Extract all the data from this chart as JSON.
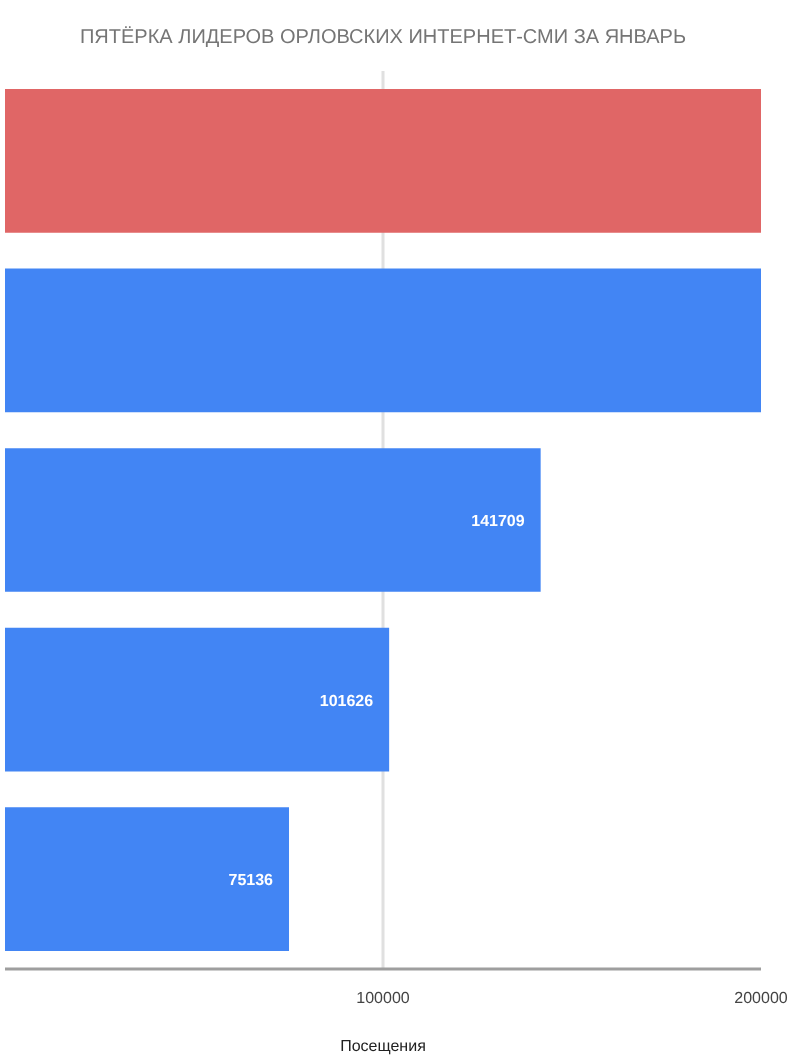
{
  "chart_data": {
    "type": "bar",
    "orientation": "horizontal",
    "title": "ПЯТЁРКА ЛИДЕРОВ ОРЛОВСКИХ ИНТЕРНЕТ-СМИ ЗА ЯНВАРЬ",
    "xlabel": "Посещения",
    "categories": [
      null,
      null,
      null,
      null,
      null
    ],
    "values": [
      200000,
      200000,
      141709,
      101626,
      75136
    ],
    "value_labels": [
      null,
      null,
      "141709",
      "101626",
      "75136"
    ],
    "colors": [
      "#e06666",
      "#4285f4",
      "#4285f4",
      "#4285f4",
      "#4285f4"
    ],
    "xlim": [
      0,
      200000
    ],
    "xticks": [
      100000,
      200000
    ],
    "grid": "x",
    "tick_labels": "x"
  }
}
